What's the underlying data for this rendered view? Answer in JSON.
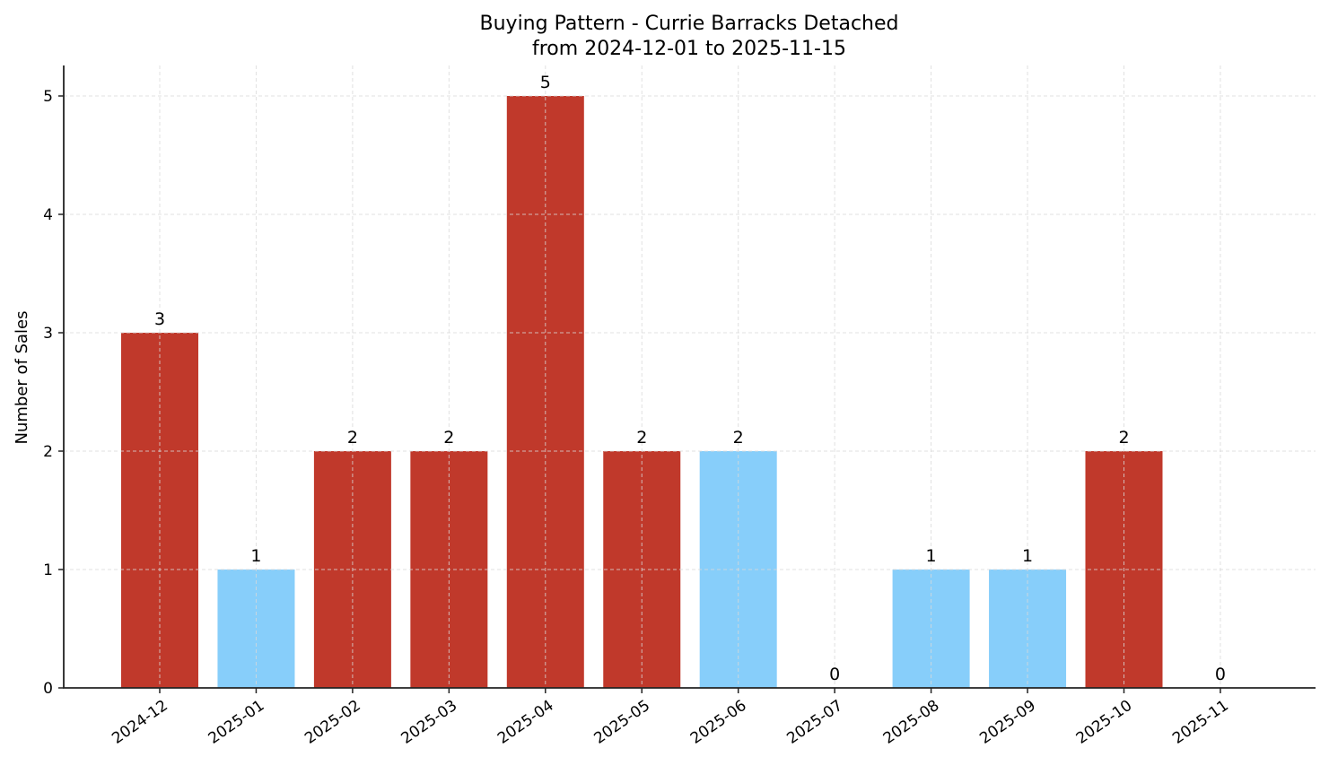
{
  "chart_data": {
    "type": "bar",
    "title": "Buying Pattern - Currie Barracks Detached",
    "subtitle": "from 2024-12-01 to 2025-11-15",
    "xlabel": "",
    "ylabel": "Number of Sales",
    "categories": [
      "2024-12",
      "2025-01",
      "2025-02",
      "2025-03",
      "2025-04",
      "2025-05",
      "2025-06",
      "2025-07",
      "2025-08",
      "2025-09",
      "2025-10",
      "2025-11"
    ],
    "values": [
      3,
      1,
      2,
      2,
      5,
      2,
      2,
      0,
      1,
      1,
      2,
      0
    ],
    "bar_colors": [
      "#c0392b",
      "#87cefa",
      "#c0392b",
      "#c0392b",
      "#c0392b",
      "#c0392b",
      "#87cefa",
      "#87cefa",
      "#87cefa",
      "#87cefa",
      "#c0392b",
      "#87cefa"
    ],
    "ylim": [
      0,
      5.26
    ],
    "yticks": [
      0,
      1,
      2,
      3,
      4,
      5
    ],
    "grid": true,
    "legend": null,
    "xtick_rotation": 35
  },
  "colors": {
    "high": "#c0392b",
    "low": "#87cefa",
    "grid": "#d9d9d9",
    "axis": "#222222"
  }
}
